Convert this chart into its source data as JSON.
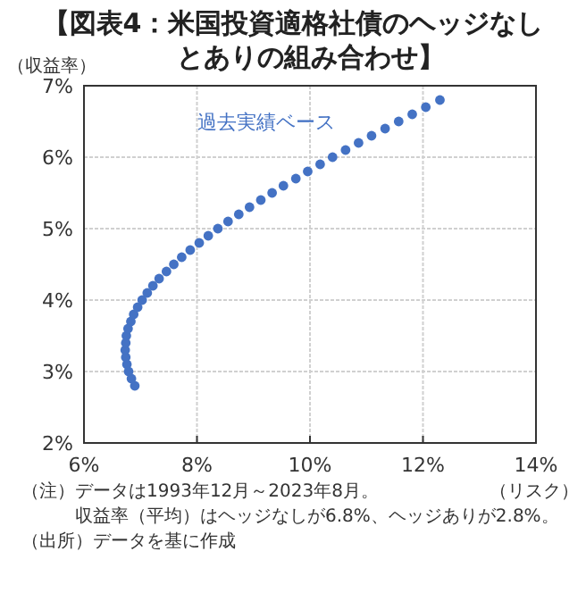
{
  "chart_data": {
    "type": "scatter",
    "title": "【図表4：米国投資適格社債のヘッジなしとありの組み合わせ】",
    "xlabel": "（リスク）",
    "ylabel": "（収益率）",
    "annotations": [
      "（注）データは1993年12月～2023年8月。",
      "収益率（平均）はヘッジなしが6.8%、ヘッジありが2.8%。",
      "（出所）データを基に作成"
    ],
    "xlim": [
      6,
      14
    ],
    "ylim": [
      2,
      7
    ],
    "xticks": [
      {
        "value": 6,
        "label": "6%"
      },
      {
        "value": 8,
        "label": "8%"
      },
      {
        "value": 10,
        "label": "10%"
      },
      {
        "value": 12,
        "label": "12%"
      },
      {
        "value": 14,
        "label": "14%"
      }
    ],
    "yticks": [
      {
        "value": 2,
        "label": "2%"
      },
      {
        "value": 3,
        "label": "3%"
      },
      {
        "value": 4,
        "label": "4%"
      },
      {
        "value": 5,
        "label": "5%"
      },
      {
        "value": 6,
        "label": "6%"
      },
      {
        "value": 7,
        "label": "7%"
      }
    ],
    "grid": true,
    "marker": "circle",
    "series": [
      {
        "name": "過去実績ベース",
        "color": "#4472c4",
        "x": [
          6.9,
          6.84,
          6.79,
          6.76,
          6.74,
          6.73,
          6.74,
          6.75,
          6.78,
          6.83,
          6.88,
          6.95,
          7.03,
          7.12,
          7.22,
          7.33,
          7.46,
          7.59,
          7.73,
          7.88,
          8.04,
          8.2,
          8.37,
          8.55,
          8.74,
          8.93,
          9.13,
          9.33,
          9.53,
          9.75,
          9.96,
          10.18,
          10.4,
          10.63,
          10.86,
          11.09,
          11.33,
          11.57,
          11.81,
          12.05,
          12.3
        ],
        "values": [
          2.8,
          2.9,
          3.0,
          3.1,
          3.2,
          3.3,
          3.4,
          3.5,
          3.6,
          3.7,
          3.8,
          3.9,
          4.0,
          4.1,
          4.2,
          4.3,
          4.4,
          4.5,
          4.6,
          4.7,
          4.8,
          4.9,
          5.0,
          5.1,
          5.2,
          5.3,
          5.4,
          5.5,
          5.6,
          5.7,
          5.8,
          5.9,
          6.0,
          6.1,
          6.2,
          6.3,
          6.4,
          6.5,
          6.6,
          6.7,
          6.8
        ]
      }
    ]
  }
}
